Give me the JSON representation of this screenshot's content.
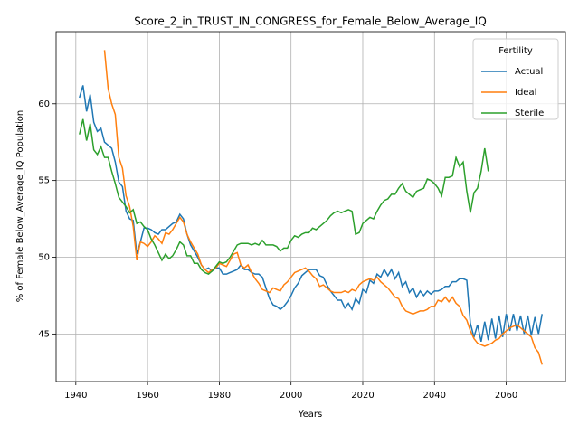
{
  "chart_data": {
    "type": "line",
    "title": "Score_2_in_TRUST_IN_CONGRESS_for_Female_Below_Average_IQ",
    "x_label": "Years",
    "y_label": "% of Female Below_Average_IQ Population",
    "legend_title": "Fertility",
    "legend_position": "upper right",
    "grid": true,
    "xlim": [
      1934.5,
      2076.5
    ],
    "ylim": [
      41.9,
      64.7
    ],
    "xticks": [
      1940,
      1960,
      1980,
      2000,
      2020,
      2040,
      2060
    ],
    "yticks": [
      45,
      50,
      55,
      60
    ],
    "x": [
      1941,
      1942,
      1943,
      1944,
      1945,
      1946,
      1947,
      1948,
      1949,
      1950,
      1951,
      1952,
      1953,
      1954,
      1955,
      1956,
      1957,
      1958,
      1959,
      1960,
      1961,
      1962,
      1963,
      1964,
      1965,
      1966,
      1967,
      1968,
      1969,
      1970,
      1971,
      1972,
      1973,
      1974,
      1975,
      1976,
      1977,
      1978,
      1979,
      1980,
      1981,
      1982,
      1983,
      1984,
      1985,
      1986,
      1987,
      1988,
      1989,
      1990,
      1991,
      1992,
      1993,
      1994,
      1995,
      1996,
      1997,
      1998,
      1999,
      2000,
      2001,
      2002,
      2003,
      2004,
      2005,
      2006,
      2007,
      2008,
      2009,
      2010,
      2011,
      2012,
      2013,
      2014,
      2015,
      2016,
      2017,
      2018,
      2019,
      2020,
      2021,
      2022,
      2023,
      2024,
      2025,
      2026,
      2027,
      2028,
      2029,
      2030,
      2031,
      2032,
      2033,
      2034,
      2035,
      2036,
      2037,
      2038,
      2039,
      2040,
      2041,
      2042,
      2043,
      2044,
      2045,
      2046,
      2047,
      2048,
      2049,
      2050,
      2051,
      2052,
      2053,
      2054,
      2055,
      2056,
      2057,
      2058,
      2059,
      2060,
      2061,
      2062,
      2063,
      2064,
      2065,
      2066,
      2067,
      2068,
      2069,
      2070
    ],
    "series": [
      {
        "name": "Actual",
        "color": "#1f77b4",
        "values": [
          60.4,
          61.2,
          59.5,
          60.6,
          58.8,
          58.2,
          58.4,
          57.5,
          57.3,
          57.1,
          56.2,
          54.9,
          54.6,
          53.0,
          52.5,
          52.4,
          50.2,
          51.0,
          51.9,
          51.9,
          51.8,
          51.6,
          51.5,
          51.8,
          51.8,
          52.0,
          52.2,
          52.3,
          52.8,
          52.5,
          51.5,
          50.8,
          50.4,
          50.0,
          49.5,
          49.2,
          49.3,
          49.1,
          49.3,
          49.3,
          48.9,
          48.9,
          49.0,
          49.1,
          49.2,
          49.5,
          49.2,
          49.2,
          49.0,
          48.9,
          48.9,
          48.7,
          48.0,
          47.3,
          46.9,
          46.8,
          46.6,
          46.8,
          47.1,
          47.5,
          48.0,
          48.3,
          48.8,
          49.0,
          49.2,
          49.2,
          49.2,
          48.8,
          48.7,
          48.2,
          47.8,
          47.5,
          47.2,
          47.2,
          46.7,
          47.0,
          46.6,
          47.3,
          47.0,
          47.9,
          47.7,
          48.5,
          48.3,
          48.9,
          48.7,
          49.2,
          48.8,
          49.2,
          48.6,
          49.0,
          48.1,
          48.4,
          47.7,
          48.0,
          47.4,
          47.8,
          47.5,
          47.8,
          47.6,
          47.8,
          47.8,
          47.9,
          48.1,
          48.1,
          48.4,
          48.4,
          48.6,
          48.6,
          48.5,
          45.7,
          44.8,
          45.6,
          44.5,
          45.8,
          44.6,
          46.0,
          44.7,
          46.2,
          44.8,
          46.3,
          45.2,
          46.3,
          45.2,
          46.2,
          45.0,
          46.2,
          44.9,
          46.1,
          45.0,
          46.3
        ]
      },
      {
        "name": "Ideal",
        "color": "#ff7f0e",
        "values": [
          null,
          null,
          null,
          null,
          null,
          null,
          null,
          63.5,
          61.0,
          60.0,
          59.3,
          56.5,
          55.8,
          54.0,
          53.3,
          52.0,
          49.8,
          51.0,
          50.9,
          50.7,
          51.0,
          51.4,
          51.2,
          50.9,
          51.6,
          51.5,
          51.8,
          52.2,
          52.6,
          52.3,
          51.5,
          51.0,
          50.6,
          50.2,
          49.5,
          49.2,
          49.0,
          49.2,
          49.3,
          49.6,
          49.5,
          49.4,
          49.8,
          50.2,
          50.3,
          49.5,
          49.3,
          49.5,
          49.0,
          48.6,
          48.3,
          47.9,
          47.8,
          47.7,
          48.0,
          47.9,
          47.8,
          48.2,
          48.4,
          48.7,
          49.0,
          49.1,
          49.2,
          49.3,
          49.1,
          48.8,
          48.6,
          48.1,
          48.2,
          48.0,
          47.8,
          47.7,
          47.7,
          47.7,
          47.8,
          47.7,
          47.9,
          47.8,
          48.2,
          48.4,
          48.5,
          48.6,
          48.5,
          48.7,
          48.4,
          48.2,
          48.0,
          47.7,
          47.4,
          47.3,
          46.8,
          46.5,
          46.4,
          46.3,
          46.4,
          46.5,
          46.5,
          46.6,
          46.8,
          46.8,
          47.2,
          47.1,
          47.4,
          47.1,
          47.4,
          47.0,
          46.8,
          46.2,
          45.9,
          45.2,
          44.7,
          44.4,
          44.3,
          44.2,
          44.3,
          44.4,
          44.6,
          44.7,
          45.0,
          45.2,
          45.4,
          45.5,
          45.6,
          45.4,
          45.2,
          45.0,
          44.8,
          44.1,
          43.8,
          43.0
        ]
      },
      {
        "name": "Sterile",
        "color": "#2ca02c",
        "values": [
          58.0,
          59.0,
          57.6,
          58.7,
          57.0,
          56.7,
          57.2,
          56.5,
          56.5,
          55.6,
          54.8,
          53.9,
          53.6,
          53.3,
          52.9,
          53.1,
          52.2,
          52.3,
          52.0,
          51.8,
          51.2,
          50.8,
          50.3,
          49.8,
          50.2,
          49.9,
          50.1,
          50.5,
          51.0,
          50.8,
          50.1,
          50.1,
          49.6,
          49.6,
          49.2,
          49.0,
          48.9,
          49.1,
          49.4,
          49.7,
          49.6,
          49.7,
          50.0,
          50.4,
          50.8,
          50.9,
          50.9,
          50.9,
          50.8,
          50.9,
          50.8,
          51.1,
          50.8,
          50.8,
          50.8,
          50.7,
          50.4,
          50.6,
          50.6,
          51.1,
          51.4,
          51.3,
          51.5,
          51.6,
          51.6,
          51.9,
          51.8,
          52.0,
          52.2,
          52.4,
          52.7,
          52.9,
          53.0,
          52.9,
          53.0,
          53.1,
          53.0,
          51.5,
          51.6,
          52.2,
          52.4,
          52.6,
          52.5,
          53.0,
          53.4,
          53.7,
          53.8,
          54.1,
          54.1,
          54.5,
          54.8,
          54.3,
          54.1,
          53.9,
          54.3,
          54.4,
          54.5,
          55.1,
          55.0,
          54.8,
          54.5,
          54.0,
          55.2,
          55.2,
          55.3,
          56.5,
          55.9,
          56.2,
          54.3,
          52.9,
          54.2,
          54.5,
          55.6,
          57.1,
          55.6,
          null,
          null,
          null,
          null,
          null,
          null,
          null,
          null,
          null,
          null,
          null,
          null,
          null,
          null,
          null
        ]
      }
    ]
  }
}
